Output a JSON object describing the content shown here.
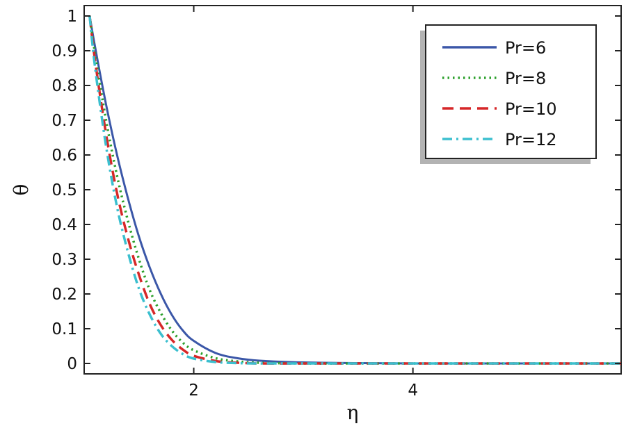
{
  "chart_data": {
    "type": "line",
    "title": "",
    "xlabel": "η",
    "ylabel": "θ",
    "xlim": [
      1,
      5.9
    ],
    "ylim": [
      -0.03,
      1.03
    ],
    "xticks": [
      2,
      4
    ],
    "yticks": [
      0,
      0.1,
      0.2,
      0.3,
      0.4,
      0.5,
      0.6,
      0.7,
      0.8,
      0.9,
      1
    ],
    "ytick_labels": [
      "0",
      "0.1",
      "0.2",
      "0.3",
      "0.4",
      "0.5",
      "0.6",
      "0.7",
      "0.8",
      "0.9",
      "1"
    ],
    "xtick_labels": [
      "2",
      "4"
    ],
    "grid": false,
    "legend_position": "top-right",
    "series": [
      {
        "name": "Pr=6",
        "color": "#3b57a8",
        "style": "solid",
        "x": [
          1.05,
          1.1,
          1.2,
          1.3,
          1.4,
          1.5,
          1.6,
          1.7,
          1.8,
          1.9,
          2.0,
          2.2,
          2.4,
          2.6,
          3.0,
          3.5,
          4.0,
          4.5,
          5.0,
          5.5,
          5.9
        ],
        "y": [
          1.0,
          0.91,
          0.745,
          0.6,
          0.475,
          0.365,
          0.275,
          0.2,
          0.14,
          0.095,
          0.065,
          0.03,
          0.015,
          0.008,
          0.003,
          0.001,
          0.0,
          0.0,
          0.0,
          0.0,
          0.0
        ]
      },
      {
        "name": "Pr=8",
        "color": "#2ca02c",
        "style": "dotted",
        "x": [
          1.05,
          1.1,
          1.2,
          1.3,
          1.4,
          1.5,
          1.6,
          1.7,
          1.8,
          1.9,
          2.0,
          2.2,
          2.4,
          2.6,
          3.0,
          3.5,
          4.0,
          4.5,
          5.0,
          5.5,
          5.9
        ],
        "y": [
          1.0,
          0.89,
          0.7,
          0.54,
          0.41,
          0.3,
          0.21,
          0.145,
          0.095,
          0.06,
          0.038,
          0.015,
          0.006,
          0.002,
          0.0,
          0.0,
          0.0,
          0.0,
          0.0,
          0.0,
          0.0
        ]
      },
      {
        "name": "Pr=10",
        "color": "#d62728",
        "style": "dashed",
        "x": [
          1.05,
          1.1,
          1.2,
          1.3,
          1.4,
          1.5,
          1.6,
          1.7,
          1.8,
          1.9,
          2.0,
          2.2,
          2.4,
          2.6,
          3.0,
          3.5,
          4.0,
          4.5,
          5.0,
          5.5,
          5.9
        ],
        "y": [
          1.0,
          0.87,
          0.66,
          0.49,
          0.36,
          0.255,
          0.17,
          0.11,
          0.068,
          0.04,
          0.022,
          0.007,
          0.002,
          0.0,
          0.0,
          0.0,
          0.0,
          0.0,
          0.0,
          0.0,
          0.0
        ]
      },
      {
        "name": "Pr=12",
        "color": "#3bbfcf",
        "style": "dashdot",
        "x": [
          1.05,
          1.1,
          1.2,
          1.3,
          1.4,
          1.5,
          1.6,
          1.7,
          1.8,
          1.9,
          2.0,
          2.2,
          2.4,
          2.6,
          3.0,
          3.5,
          4.0,
          4.5,
          5.0,
          5.5,
          5.9
        ],
        "y": [
          1.0,
          0.85,
          0.625,
          0.45,
          0.32,
          0.215,
          0.14,
          0.085,
          0.05,
          0.027,
          0.014,
          0.004,
          0.001,
          0.0,
          0.0,
          0.0,
          0.0,
          0.0,
          0.0,
          0.0,
          0.0
        ]
      }
    ]
  }
}
